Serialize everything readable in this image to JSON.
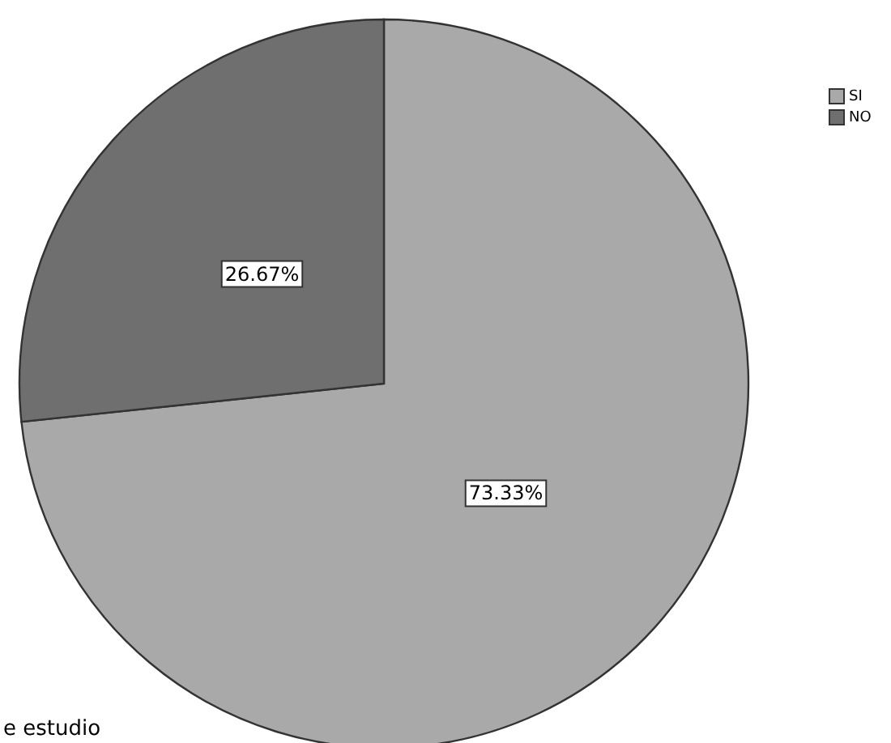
{
  "chart_data": {
    "type": "pie",
    "categories": [
      "SI",
      "NO"
    ],
    "values": [
      73.33,
      26.67
    ],
    "colors": [
      "#a9a9a9",
      "#6f6f6f"
    ],
    "value_labels": [
      "73.33%",
      "26.67%"
    ],
    "legend": "top right",
    "annotations": [
      "e estudio"
    ]
  }
}
